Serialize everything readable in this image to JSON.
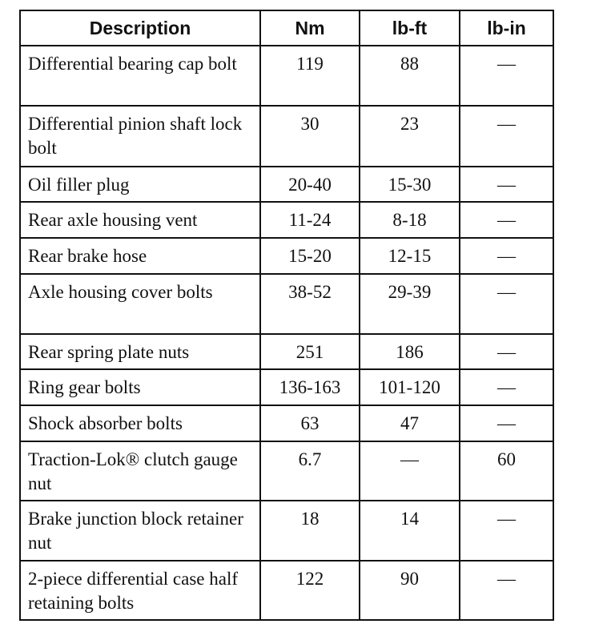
{
  "table": {
    "header": [
      "Description",
      "Nm",
      "lb-ft",
      "lb-in"
    ],
    "rows": [
      [
        "Differential bearing cap bolt",
        "119",
        "88",
        "—"
      ],
      [
        "Differential pinion shaft lock bolt",
        "30",
        "23",
        "—"
      ],
      [
        "Oil filler plug",
        "20-40",
        "15-30",
        "—"
      ],
      [
        "Rear axle housing vent",
        "11-24",
        "8-18",
        "—"
      ],
      [
        "Rear brake hose",
        "15-20",
        "12-15",
        "—"
      ],
      [
        "Axle housing cover bolts",
        "38-52",
        "29-39",
        "—"
      ],
      [
        "Rear spring plate nuts",
        "251",
        "186",
        "—"
      ],
      [
        "Ring gear bolts",
        "136-163",
        "101-120",
        "—"
      ],
      [
        "Shock absorber bolts",
        "63",
        "47",
        "—"
      ],
      [
        "Traction-Lok® clutch gauge nut",
        "6.7",
        "—",
        "60"
      ],
      [
        "Brake junction block retainer nut",
        "18",
        "14",
        "—"
      ],
      [
        "2-piece differential case half retaining bolts",
        "122",
        "90",
        "—"
      ]
    ]
  }
}
